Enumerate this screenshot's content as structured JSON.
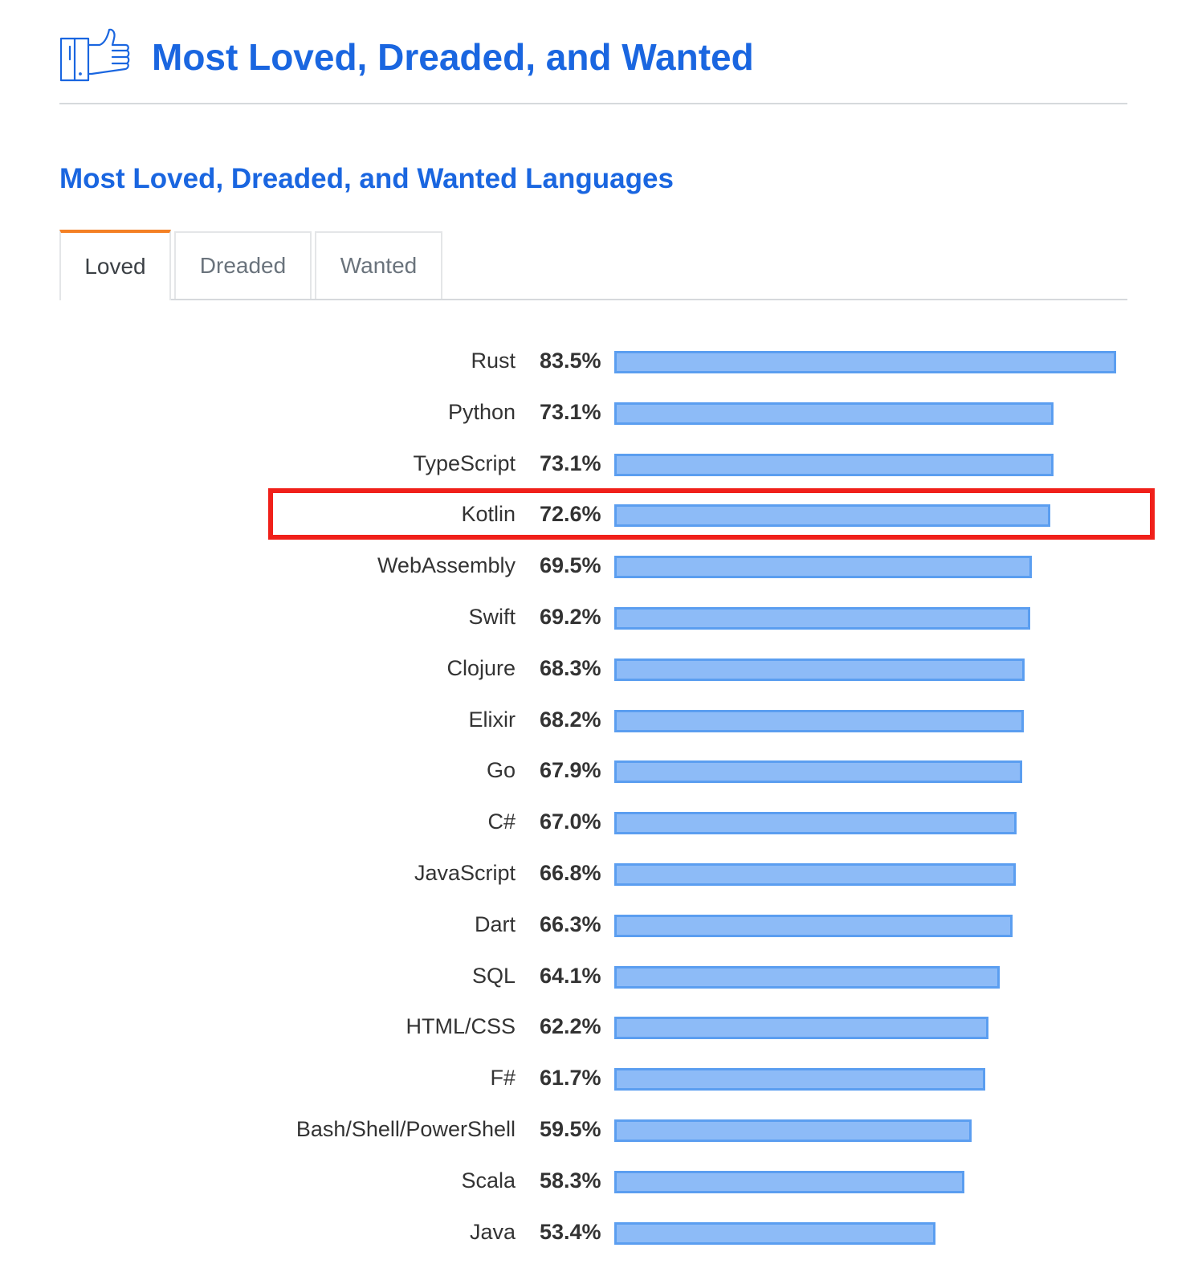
{
  "header": {
    "title": "Most Loved, Dreaded, and Wanted",
    "icon": "thumbs-up-icon"
  },
  "section": {
    "title": "Most Loved, Dreaded, and Wanted Languages"
  },
  "tabs": [
    {
      "label": "Loved",
      "active": true
    },
    {
      "label": "Dreaded",
      "active": false
    },
    {
      "label": "Wanted",
      "active": false
    }
  ],
  "colors": {
    "accent": "#1a66e0",
    "tab_active": "#f48024",
    "bar_fill": "#8dbbf7",
    "bar_border": "#5b9ef0",
    "highlight": "#f0201a"
  },
  "highlighted_row": "Kotlin",
  "chart_data": {
    "type": "bar",
    "orientation": "horizontal",
    "categories": [
      "Rust",
      "Python",
      "TypeScript",
      "Kotlin",
      "WebAssembly",
      "Swift",
      "Clojure",
      "Elixir",
      "Go",
      "C#",
      "JavaScript",
      "Dart",
      "SQL",
      "HTML/CSS",
      "F#",
      "Bash/Shell/PowerShell",
      "Scala",
      "Java"
    ],
    "value_labels": [
      "83.5%",
      "73.1%",
      "73.1%",
      "72.6%",
      "69.5%",
      "69.2%",
      "68.3%",
      "68.2%",
      "67.9%",
      "67.0%",
      "66.8%",
      "66.3%",
      "64.1%",
      "62.2%",
      "61.7%",
      "59.5%",
      "58.3%",
      "53.4%"
    ],
    "values": [
      83.5,
      73.1,
      73.1,
      72.6,
      69.5,
      69.2,
      68.3,
      68.2,
      67.9,
      67.0,
      66.8,
      66.3,
      64.1,
      62.2,
      61.7,
      59.5,
      58.3,
      53.4
    ]
  }
}
